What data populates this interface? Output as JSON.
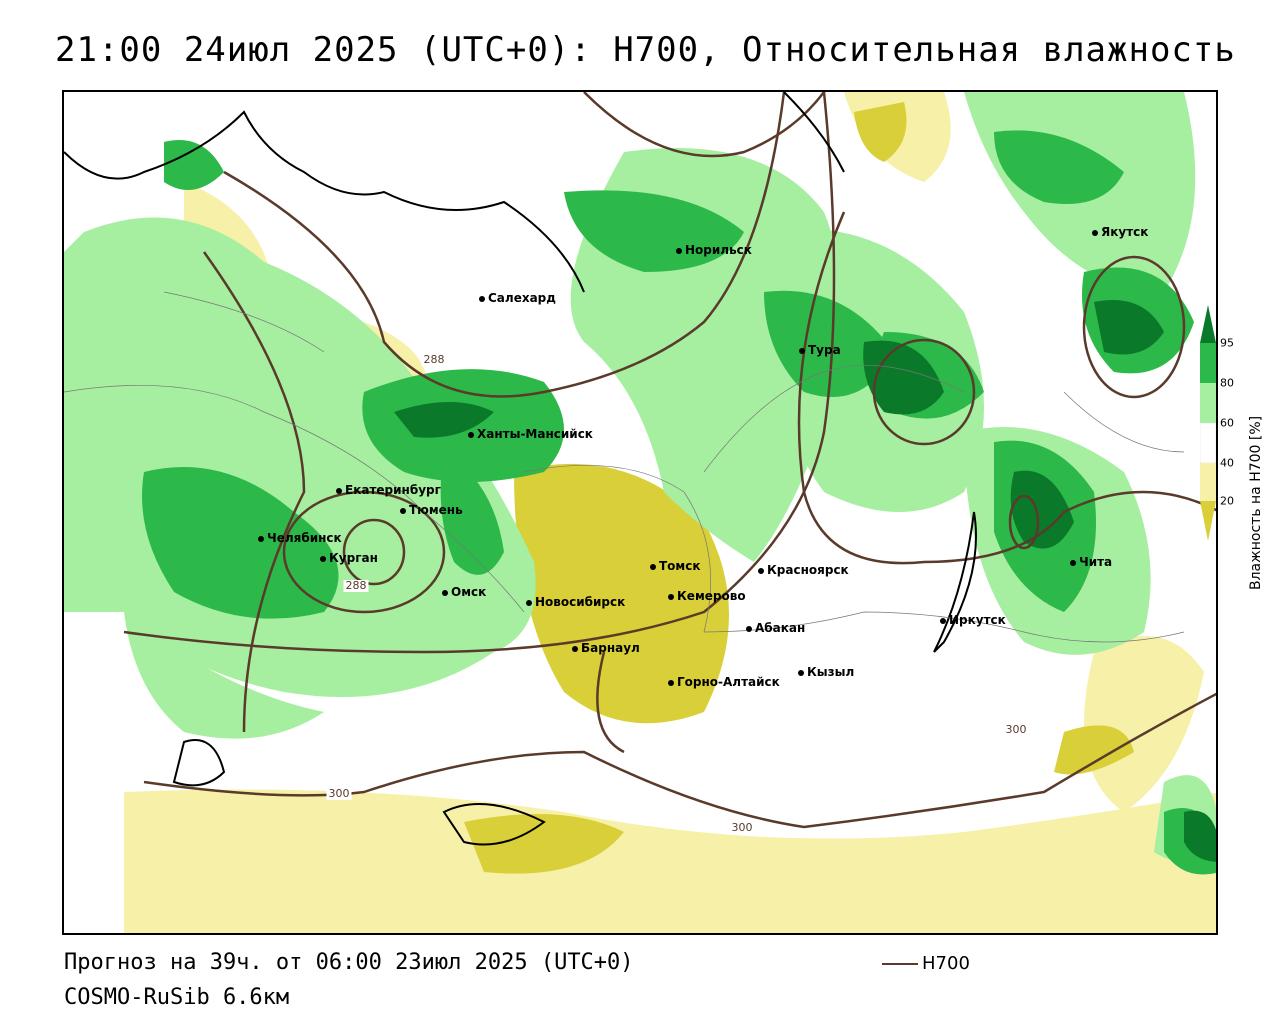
{
  "title": "21:00 24июл 2025 (UTC+0): H700, Относительная влажность",
  "footer": {
    "forecast": "Прогноз на 39ч. от 06:00 23июл 2025 (UTC+0)",
    "model": "COSMO-RuSib 6.6км",
    "legend_line_label": "H700"
  },
  "colorbar": {
    "label": "Влажность на H700 [%]",
    "ticks": [
      "95",
      "80",
      "60",
      "40",
      "20"
    ],
    "colors": {
      "c95": "#0a7a2a",
      "c80": "#2db84a",
      "c60": "#a6eea0",
      "c40": "#ffffff",
      "c20a": "#f7f0a8",
      "c20b": "#d9cf38"
    }
  },
  "contour_labels": [
    "288",
    "288",
    "300",
    "300",
    "300"
  ],
  "cities": [
    {
      "name": "Якутск"
    },
    {
      "name": "Норильск"
    },
    {
      "name": "Салехард"
    },
    {
      "name": "Тура"
    },
    {
      "name": "Ханты-Мансийск"
    },
    {
      "name": "Екатеринбург"
    },
    {
      "name": "Тюмень"
    },
    {
      "name": "Челябинск"
    },
    {
      "name": "Курган"
    },
    {
      "name": "Омск"
    },
    {
      "name": "Томск"
    },
    {
      "name": "Красноярск"
    },
    {
      "name": "Новосибирск"
    },
    {
      "name": "Кемерово"
    },
    {
      "name": "Абакан"
    },
    {
      "name": "Барнаул"
    },
    {
      "name": "Кызыл"
    },
    {
      "name": "Горно-Алтайск"
    },
    {
      "name": "Иркутск"
    },
    {
      "name": "Чита"
    }
  ]
}
